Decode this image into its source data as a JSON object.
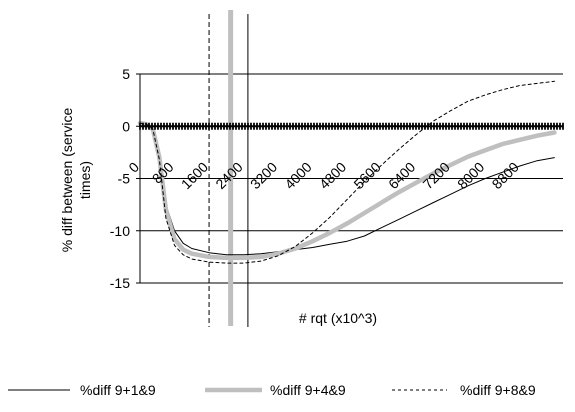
{
  "chart_data": {
    "type": "line",
    "title": "",
    "xlabel": "# rqt (x10^3)",
    "ylabel": "% diff between (service times)",
    "ylabel_lines": [
      "% diff between (service",
      "times)"
    ],
    "xlim": [
      0,
      9800
    ],
    "ylim": [
      -15,
      5
    ],
    "yticks": [
      5,
      0,
      -5,
      -10,
      -15
    ],
    "xtick_labels": [
      "0",
      "800",
      "1600",
      "2400",
      "3200",
      "4000",
      "4800",
      "5600",
      "6400",
      "7200",
      "8000",
      "8800"
    ],
    "xtick_values": [
      0,
      800,
      1600,
      2400,
      3200,
      4000,
      4800,
      5600,
      6400,
      7200,
      8000,
      8800
    ],
    "grid_y": true,
    "legend_position": "bottom",
    "vertical_markers": [
      {
        "x": 1600,
        "style": "dashed"
      },
      {
        "x": 2100,
        "style": "thick-gray"
      },
      {
        "x": 2500,
        "style": "solid"
      }
    ],
    "series": [
      {
        "name": "%diff  9+1&9",
        "style": "thin-solid",
        "color": "#000000",
        "x": [
          0,
          150,
          300,
          450,
          600,
          800,
          1000,
          1200,
          1600,
          2000,
          2400,
          2800,
          3200,
          3600,
          4000,
          4400,
          4800,
          5200,
          5600,
          6000,
          6400,
          6800,
          7200,
          7600,
          8000,
          8400,
          8800,
          9200,
          9600
        ],
        "y": [
          0.3,
          0.2,
          -0.3,
          -3.0,
          -7.5,
          -10.0,
          -11.2,
          -11.7,
          -12.1,
          -12.3,
          -12.3,
          -12.2,
          -12.0,
          -11.8,
          -11.6,
          -11.3,
          -11.0,
          -10.5,
          -9.7,
          -8.9,
          -8.1,
          -7.3,
          -6.5,
          -5.7,
          -5.0,
          -4.4,
          -3.8,
          -3.3,
          -3.0
        ]
      },
      {
        "name": "%diff  9+4&9",
        "style": "thick-gray",
        "color": "#bfbfbf",
        "x": [
          0,
          150,
          300,
          450,
          600,
          800,
          1000,
          1200,
          1600,
          2000,
          2400,
          2800,
          3200,
          3600,
          4000,
          4400,
          4800,
          5200,
          5600,
          6000,
          6400,
          6800,
          7200,
          7600,
          8000,
          8400,
          8800,
          9200,
          9600
        ],
        "y": [
          0.3,
          0.2,
          -0.3,
          -3.0,
          -8.0,
          -10.8,
          -11.8,
          -12.2,
          -12.5,
          -12.6,
          -12.6,
          -12.5,
          -12.2,
          -11.7,
          -11.0,
          -10.2,
          -9.3,
          -8.3,
          -7.3,
          -6.3,
          -5.4,
          -4.5,
          -3.7,
          -2.9,
          -2.3,
          -1.7,
          -1.3,
          -0.9,
          -0.6
        ]
      },
      {
        "name": "%diff  9+8&9",
        "style": "dotted",
        "color": "#000000",
        "x": [
          0,
          150,
          300,
          450,
          600,
          800,
          1000,
          1200,
          1600,
          2000,
          2400,
          2800,
          3200,
          3600,
          4000,
          4400,
          4800,
          5200,
          5600,
          6000,
          6400,
          6800,
          7200,
          7600,
          8000,
          8400,
          8800,
          9200,
          9600
        ],
        "y": [
          0.3,
          0.2,
          -0.3,
          -3.2,
          -8.8,
          -11.4,
          -12.3,
          -12.7,
          -13.0,
          -13.1,
          -13.1,
          -12.9,
          -12.4,
          -11.5,
          -10.2,
          -8.7,
          -7.0,
          -5.3,
          -3.7,
          -2.2,
          -0.8,
          0.5,
          1.5,
          2.4,
          3.0,
          3.5,
          3.9,
          4.1,
          4.3
        ]
      }
    ]
  }
}
